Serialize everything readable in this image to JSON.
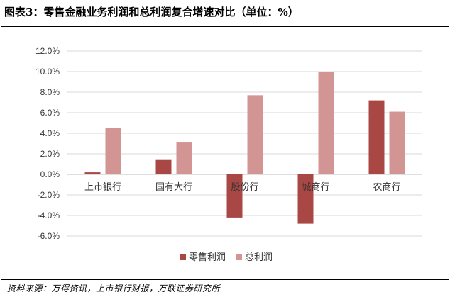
{
  "figure": {
    "title": "图表3：零售金融业务利润和总利润复合增速对比（单位：%）",
    "source": "资料来源：万得资讯，上市银行财报，万联证券研究所"
  },
  "chart_data": {
    "type": "bar",
    "categories": [
      "上市银行",
      "国有大行",
      "股份行",
      "城商行",
      "农商行"
    ],
    "series": [
      {
        "name": "零售利润",
        "color": "#A94745",
        "values": [
          0.2,
          1.4,
          -4.2,
          -4.8,
          7.2
        ]
      },
      {
        "name": "总利润",
        "color": "#D39594",
        "values": [
          4.5,
          3.1,
          7.7,
          10.0,
          6.1
        ]
      }
    ],
    "ylim": [
      -6,
      12
    ],
    "yticks": [
      "-6.0%",
      "-4.0%",
      "-2.0%",
      "0.0%",
      "2.0%",
      "4.0%",
      "6.0%",
      "8.0%",
      "10.0%",
      "12.0%"
    ],
    "ytick_values": [
      -6,
      -4,
      -2,
      0,
      2,
      4,
      6,
      8,
      10,
      12
    ],
    "grid": true,
    "legend": "bottom"
  }
}
